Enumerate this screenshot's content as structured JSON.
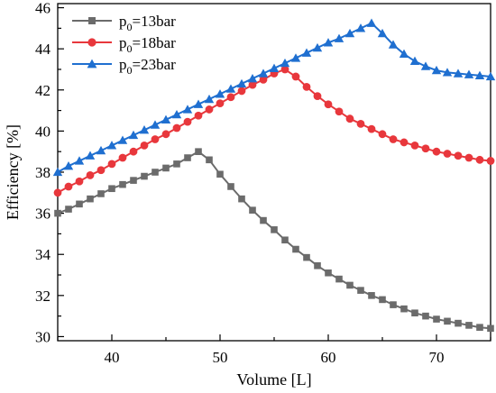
{
  "chart_data": {
    "type": "line",
    "xlabel": "Volume [L]",
    "ylabel": "Efficiency [%]",
    "xlim": [
      35,
      75
    ],
    "ylim": [
      29.8,
      46.2
    ],
    "xticks": [
      40,
      50,
      60,
      70
    ],
    "yticks": [
      30,
      32,
      34,
      36,
      38,
      40,
      42,
      44,
      46
    ],
    "grid": false,
    "legend_position": "top-left",
    "series": [
      {
        "name_main": "p",
        "name_sub": "0",
        "name_rest": "=13bar",
        "color": "#6b6b6b",
        "marker": "square",
        "x": [
          35,
          36,
          37,
          38,
          39,
          40,
          41,
          42,
          43,
          44,
          45,
          46,
          47,
          48,
          49,
          50,
          51,
          52,
          53,
          54,
          55,
          56,
          57,
          58,
          59,
          60,
          61,
          62,
          63,
          64,
          65,
          66,
          67,
          68,
          69,
          70,
          71,
          72,
          73,
          74,
          75
        ],
        "y": [
          36.0,
          36.2,
          36.45,
          36.7,
          36.95,
          37.2,
          37.4,
          37.6,
          37.8,
          38.0,
          38.2,
          38.4,
          38.7,
          39.0,
          38.6,
          37.9,
          37.3,
          36.7,
          36.15,
          35.65,
          35.2,
          34.7,
          34.25,
          33.85,
          33.45,
          33.1,
          32.8,
          32.5,
          32.25,
          32.0,
          31.8,
          31.55,
          31.35,
          31.15,
          31.0,
          30.85,
          30.75,
          30.65,
          30.55,
          30.45,
          30.4
        ]
      },
      {
        "name_main": "p",
        "name_sub": "0",
        "name_rest": "=18bar",
        "color": "#e8373c",
        "marker": "circle",
        "x": [
          35,
          36,
          37,
          38,
          39,
          40,
          41,
          42,
          43,
          44,
          45,
          46,
          47,
          48,
          49,
          50,
          51,
          52,
          53,
          54,
          55,
          56,
          57,
          58,
          59,
          60,
          61,
          62,
          63,
          64,
          65,
          66,
          67,
          68,
          69,
          70,
          71,
          72,
          73,
          74,
          75
        ],
        "y": [
          37.0,
          37.3,
          37.55,
          37.85,
          38.1,
          38.4,
          38.7,
          39.0,
          39.3,
          39.6,
          39.85,
          40.15,
          40.45,
          40.75,
          41.05,
          41.35,
          41.65,
          41.95,
          42.25,
          42.5,
          42.8,
          43.0,
          42.65,
          42.15,
          41.7,
          41.3,
          40.95,
          40.6,
          40.35,
          40.1,
          39.85,
          39.6,
          39.45,
          39.3,
          39.15,
          39.0,
          38.9,
          38.8,
          38.7,
          38.6,
          38.55
        ]
      },
      {
        "name_main": "p",
        "name_sub": "0",
        "name_rest": "=23bar",
        "color": "#1f6fd0",
        "marker": "triangle",
        "x": [
          35,
          36,
          37,
          38,
          39,
          40,
          41,
          42,
          43,
          44,
          45,
          46,
          47,
          48,
          49,
          50,
          51,
          52,
          53,
          54,
          55,
          56,
          57,
          58,
          59,
          60,
          61,
          62,
          63,
          64,
          65,
          66,
          67,
          68,
          69,
          70,
          71,
          72,
          73,
          74,
          75
        ],
        "y": [
          38.0,
          38.3,
          38.55,
          38.8,
          39.05,
          39.3,
          39.55,
          39.8,
          40.05,
          40.3,
          40.55,
          40.8,
          41.05,
          41.3,
          41.55,
          41.8,
          42.05,
          42.3,
          42.55,
          42.8,
          43.05,
          43.3,
          43.55,
          43.8,
          44.05,
          44.3,
          44.5,
          44.75,
          45.0,
          45.25,
          44.75,
          44.2,
          43.75,
          43.4,
          43.15,
          42.95,
          42.85,
          42.8,
          42.75,
          42.7,
          42.65
        ]
      }
    ]
  }
}
